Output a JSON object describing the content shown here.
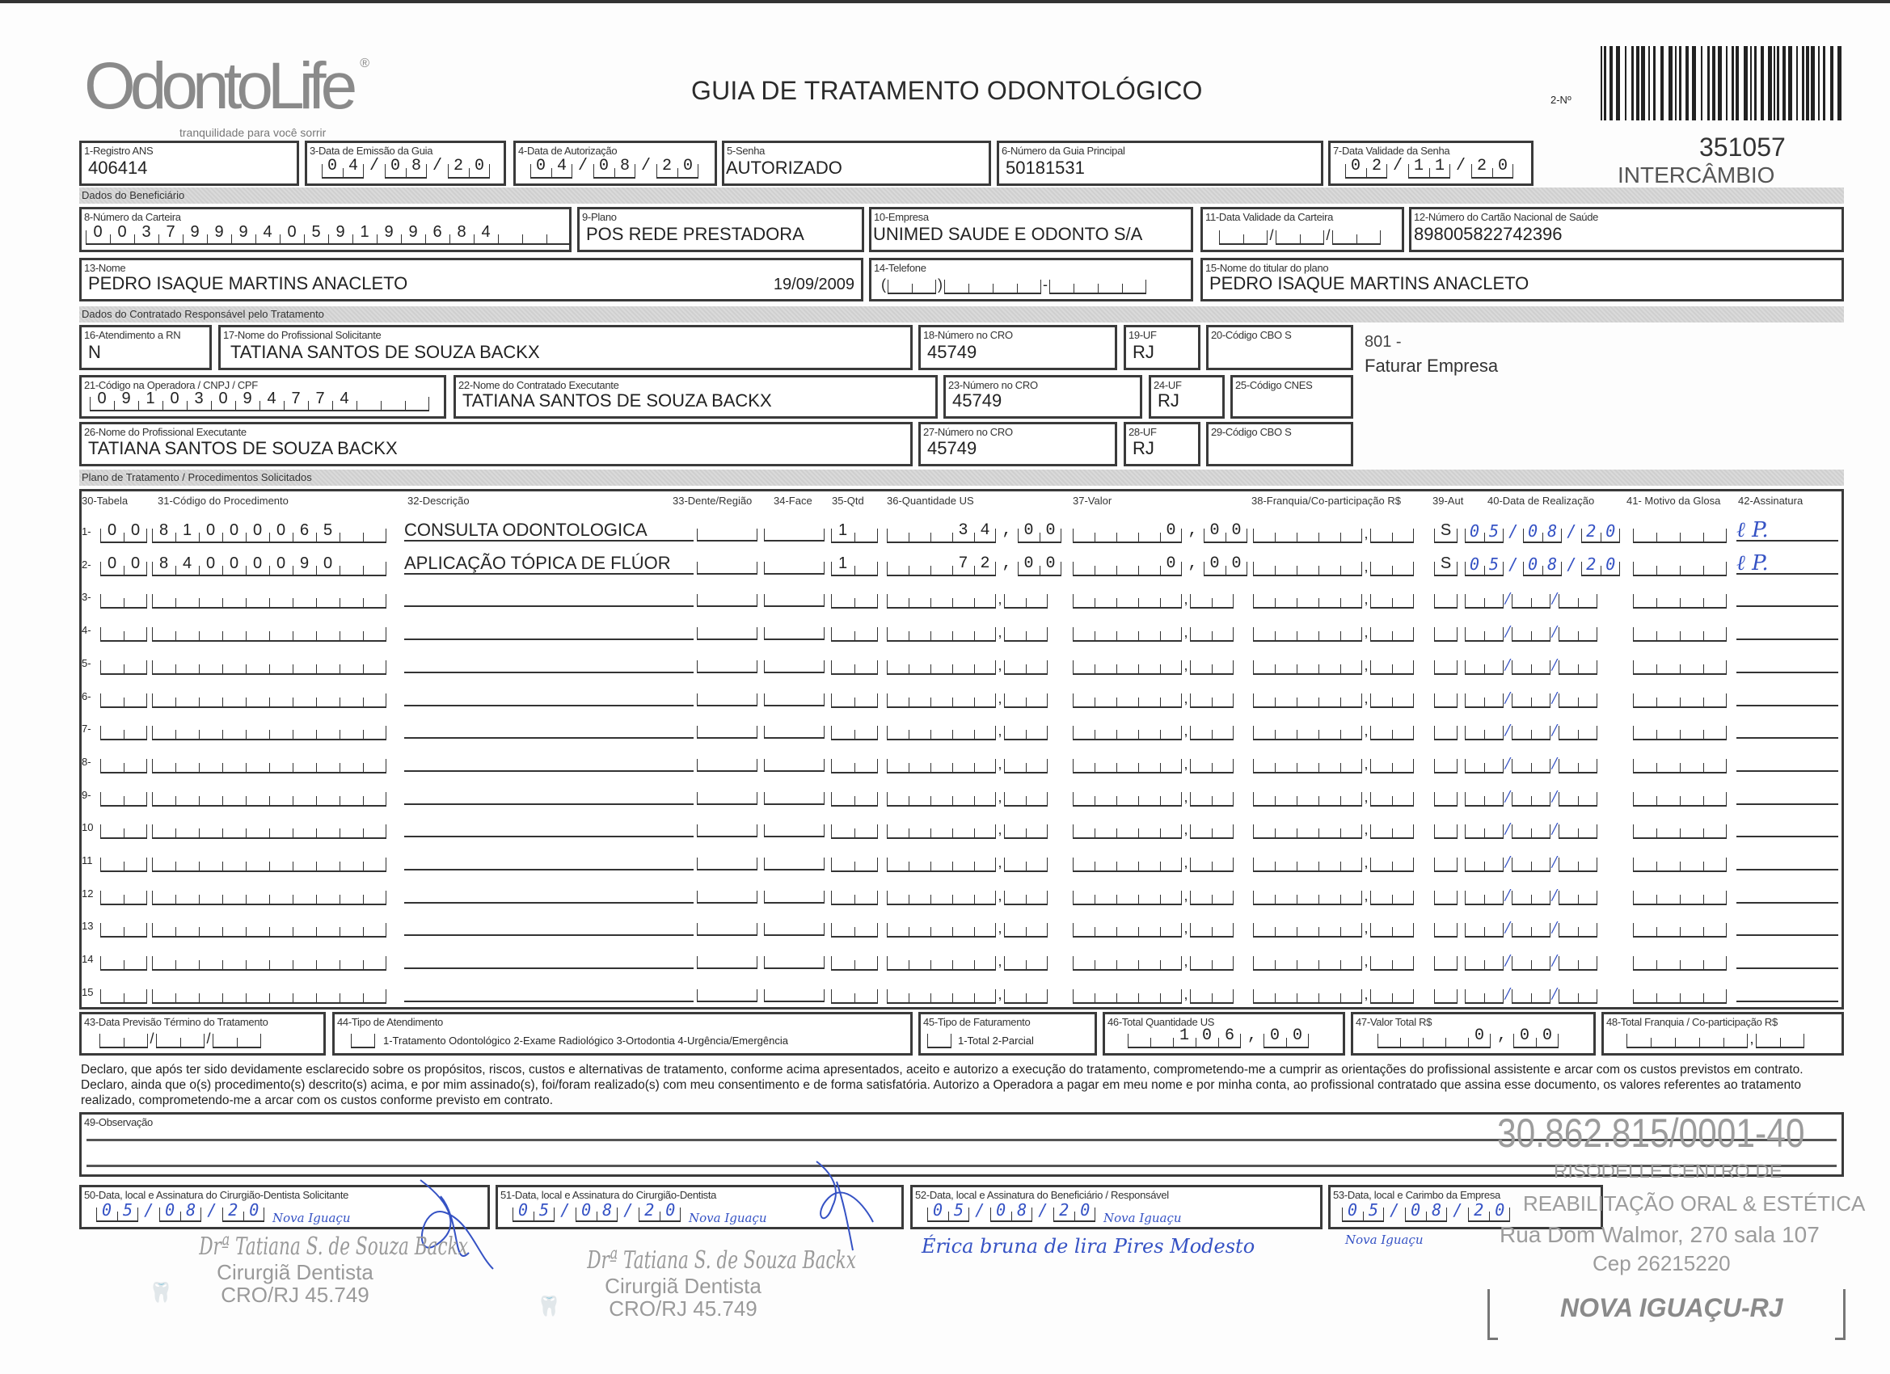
{
  "logo": {
    "brand": "OdontoLife",
    "registered": "®",
    "tagline": "tranquilidade para você sorrir"
  },
  "title": "GUIA DE TRATAMENTO ODONTOLÓGICO",
  "guia_numero": {
    "label": "2-Nº",
    "value": "351057",
    "tipo": "INTERCÂMBIO"
  },
  "sections": {
    "beneficiario": "Dados do Beneficiário",
    "contratado": "Dados do Contratado Responsável pelo Tratamento",
    "plano": "Plano de Tratamento / Procedimentos Solicitados"
  },
  "fields": {
    "f1": {
      "label": "1-Registro ANS",
      "value": "406414"
    },
    "f3": {
      "label": "3-Data de Emissão da Guia",
      "value": "04/08/20"
    },
    "f4": {
      "label": "4-Data de Autorização",
      "value": "04/08/20"
    },
    "f5": {
      "label": "5-Senha",
      "value": "AUTORIZADO"
    },
    "f6": {
      "label": "6-Número da Guia Principal",
      "value": "50181531"
    },
    "f7": {
      "label": "7-Data Validade da Senha",
      "value": "02/11/20"
    },
    "f8": {
      "label": "8-Número da Carteira",
      "value": "00379994059199684"
    },
    "f9": {
      "label": "9-Plano",
      "value": "POS REDE PRESTADORA"
    },
    "f10": {
      "label": "10-Empresa",
      "value": "UNIMED SAUDE E ODONTO S/A"
    },
    "f11": {
      "label": "11-Data Validade da Carteira",
      "value": "//"
    },
    "f12": {
      "label": "12-Número do Cartão Nacional de Saúde",
      "value": "898005822742396"
    },
    "f13": {
      "label": "13-Nome",
      "value": "PEDRO ISAQUE MARTINS ANACLETO",
      "birth_date": "19/09/2009"
    },
    "f14": {
      "label": "14-Telefone",
      "value": ""
    },
    "f15": {
      "label": "15-Nome do titular do plano",
      "value": "PEDRO ISAQUE MARTINS ANACLETO"
    },
    "f16": {
      "label": "16-Atendimento a RN",
      "value": "N"
    },
    "f17": {
      "label": "17-Nome do Profissional Solicitante",
      "value": "TATIANA SANTOS DE SOUZA BACKX"
    },
    "f18": {
      "label": "18-Número no CRO",
      "value": "45749"
    },
    "f19": {
      "label": "19-UF",
      "value": "RJ"
    },
    "f20": {
      "label": "20-Código CBO S",
      "value": ""
    },
    "f21": {
      "label": "21-Código na Operadora / CNPJ / CPF",
      "value": "09103094774"
    },
    "f22": {
      "label": "22-Nome do Contratado Executante",
      "value": "TATIANA SANTOS DE SOUZA BACKX"
    },
    "f23": {
      "label": "23-Número no CRO",
      "value": "45749"
    },
    "f24": {
      "label": "24-UF",
      "value": "RJ"
    },
    "f25": {
      "label": "25-Código CNES",
      "value": ""
    },
    "f26": {
      "label": "26-Nome do Profissional Executante",
      "value": "TATIANA SANTOS DE SOUZA BACKX"
    },
    "f27": {
      "label": "27-Número no CRO",
      "value": "45749"
    },
    "f28": {
      "label": "28-UF",
      "value": "RJ"
    },
    "f29": {
      "label": "29-Código CBO S",
      "value": ""
    }
  },
  "side_note": {
    "code": "801 -",
    "text": "Faturar Empresa"
  },
  "table": {
    "headers": {
      "tabela": "30-Tabela",
      "codigo": "31-Código do Procedimento",
      "descricao": "32-Descrição",
      "dente": "33-Dente/Região",
      "face": "34-Face",
      "qtd": "35-Qtd",
      "us": "36-Quantidade US",
      "valor": "37-Valor",
      "franquia": "38-Franquia/Co-participação R$",
      "aut": "39-Aut",
      "data": "40-Data de Realização",
      "glosa": "41- Motivo da Glosa",
      "assinatura": "42-Assinatura"
    },
    "rows": [
      {
        "n": "1-",
        "tabela": "00",
        "codigo": "81000065",
        "descricao": "CONSULTA ODONTOLOGICA",
        "dente": "",
        "face": "",
        "qtd": "1",
        "us": "34,00",
        "valor": "0,00",
        "franquia": ",",
        "aut": "S",
        "data": "05/08/20",
        "glosa": "",
        "assinatura": "ℓ P."
      },
      {
        "n": "2-",
        "tabela": "00",
        "codigo": "84000090",
        "descricao": "APLICAÇÃO TÓPICA DE FLÚOR",
        "dente": "",
        "face": "",
        "qtd": "1",
        "us": "72,00",
        "valor": "0,00",
        "franquia": ",",
        "aut": "S",
        "data": "05/08/20",
        "glosa": "",
        "assinatura": "ℓ P."
      },
      {
        "n": "3-"
      },
      {
        "n": "4-"
      },
      {
        "n": "5-"
      },
      {
        "n": "6-"
      },
      {
        "n": "7-"
      },
      {
        "n": "8-"
      },
      {
        "n": "9-"
      },
      {
        "n": "10"
      },
      {
        "n": "11"
      },
      {
        "n": "12"
      },
      {
        "n": "13"
      },
      {
        "n": "14"
      },
      {
        "n": "15"
      }
    ]
  },
  "totals": {
    "f43": {
      "label": "43-Data Previsão Término do Tratamento",
      "value": "//"
    },
    "f44": {
      "label": "44-Tipo de Atendimento",
      "value": "",
      "options": "1-Tratamento Odontológico  2-Exame Radiológico  3-Ortodontia  4-Urgência/Emergência"
    },
    "f45": {
      "label": "45-Tipo de Faturamento",
      "value": "",
      "options": "1-Total  2-Parcial"
    },
    "f46": {
      "label": "46-Total Quantidade US",
      "value": "106,00"
    },
    "f47": {
      "label": "47-Valor Total R$",
      "value": "0,00"
    },
    "f48": {
      "label": "48-Total Franquia / Co-participação R$",
      "value": ","
    }
  },
  "declaration": "Declaro, que após ter sido devidamente esclarecido sobre os propósitos, riscos, custos e alternativas de tratamento, conforme acima apresentados, aceito e autorizo a execução do tratamento, comprometendo-me a cumprir as orientações do profissional assistente e arcar com os custos previstos em contrato. Declaro, ainda que o(s) procedimento(s) descrito(s) acima, e por mim assinado(s), foi/foram realizado(s) com meu consentimento e de forma satisfatória. Autorizo a Operadora a pagar em meu nome e por minha conta, ao profissional contratado que assina esse documento, os valores referentes ao tratamento realizado, comprometendo-me a arcar com os custos conforme previsto em contrato.",
  "observacao": {
    "label": "49-Observação",
    "value": ""
  },
  "signatures": {
    "f50": {
      "label": "50-Data, local e Assinatura do Cirurgião-Dentista Solicitante",
      "date": "05/08/20",
      "place": "Nova Iguaçu"
    },
    "f51": {
      "label": "51-Data, local e Assinatura do Cirurgião-Dentista",
      "date": "05/08/20",
      "place": "Nova Iguaçu"
    },
    "f52": {
      "label": "52-Data, local e Assinatura do Beneficiário / Responsável",
      "date": "05/08/20",
      "place": "Nova Iguaçu",
      "signature": "Érica bruna de lira Pires Modesto"
    },
    "f53": {
      "label": "53-Data, local e Carimbo da Empresa",
      "date": "05/08/20",
      "place": "Nova Iguaçu"
    }
  },
  "stamps": {
    "dentist": {
      "name": "Drª Tatiana S. de Souza Backx",
      "title": "Cirurgiã Dentista",
      "cro": "CRO/RJ 45.749"
    },
    "company": {
      "cnpj": "30.862.815/0001-40",
      "line1": "RISODELLE CENTRO DE",
      "line2": "REABILITAÇÃO ORAL & ESTÉTICA",
      "address": "Rua Dom Walmor, 270 sala 107",
      "cep": "Cep 26215220",
      "city": "NOVA IGUAÇU-RJ"
    }
  },
  "colors": {
    "ink_blue": "#3552c4",
    "stamp_gray": "#9c9c9c",
    "form_border": "#3a3a3a"
  }
}
